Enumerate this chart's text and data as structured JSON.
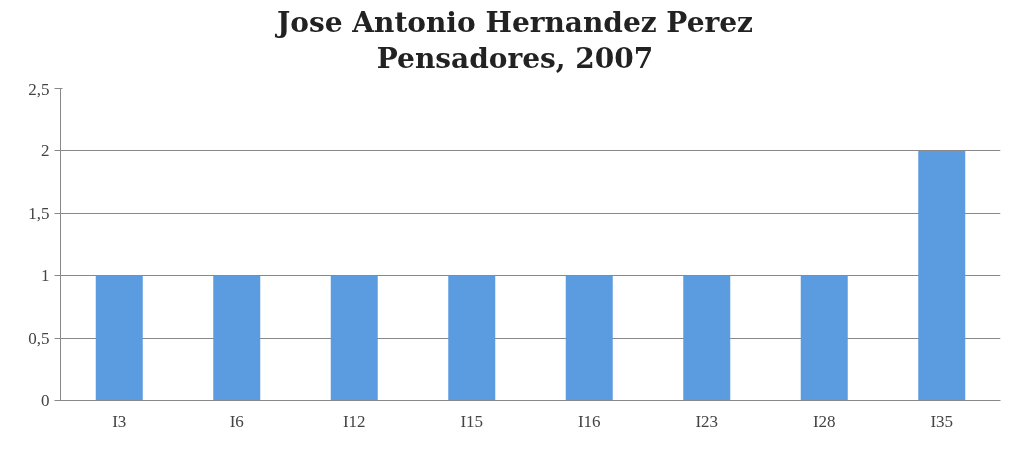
{
  "chart_data": {
    "type": "bar",
    "title": "Jose Antonio Hernandez Perez\nPensadores, 2007",
    "categories": [
      "I3",
      "I6",
      "I12",
      "I15",
      "I16",
      "I23",
      "I28",
      "I35"
    ],
    "values": [
      1,
      1,
      1,
      1,
      1,
      1,
      1,
      2
    ],
    "color": "#5b9ce0",
    "ylim": [
      0,
      2.5
    ],
    "yticks": [
      0,
      {
        "value": 0.5,
        "label": "0,5"
      },
      1,
      {
        "value": 1.5,
        "label": "1,5"
      },
      2,
      {
        "value": 2.5,
        "label": "2,5"
      }
    ],
    "grid": "y"
  }
}
